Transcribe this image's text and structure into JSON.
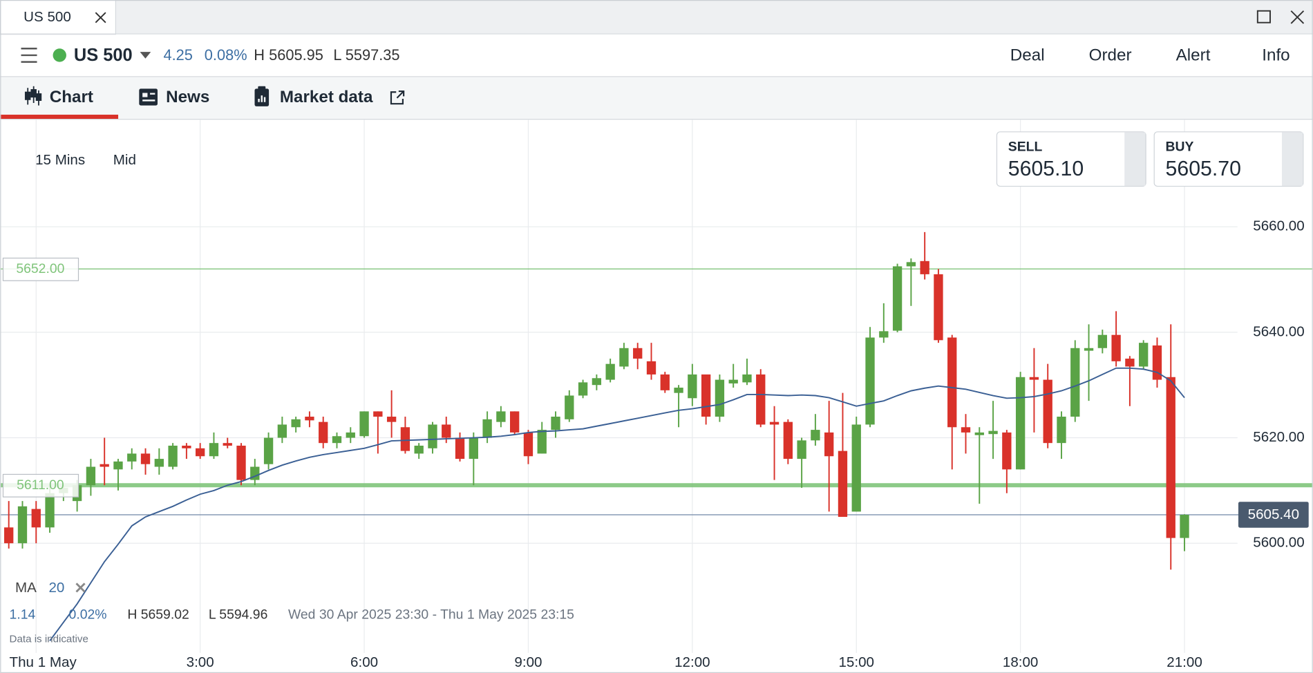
{
  "tab": {
    "title": "US 500"
  },
  "header": {
    "instrument": "US 500",
    "change": "4.25",
    "change_pct": "0.08%",
    "high": "H 5605.95",
    "low": "L 5597.35",
    "actions": [
      "Deal",
      "Order",
      "Alert",
      "Info"
    ]
  },
  "tabs": [
    "Chart",
    "News",
    "Market data"
  ],
  "chart_controls": {
    "interval": "15 Mins",
    "price_type": "Mid"
  },
  "quotes": [
    {
      "label": "SELL",
      "price": "5605.10"
    },
    {
      "label": "BUY",
      "price": "5605.70"
    }
  ],
  "footer": {
    "change": "1.14",
    "change_pct": "0.02%",
    "high": "H 5659.02",
    "low": "L 5594.96",
    "range": "Wed 30 Apr 2025 23:30 - Thu 1 May 2025 23:15",
    "note": "Data is indicative"
  },
  "chart_data": {
    "type": "candlestick",
    "categories": [
      null,
      null,
      "Thu 1 May",
      null,
      null,
      null,
      null,
      null,
      null,
      null,
      null,
      null,
      null,
      null,
      "3:00",
      null,
      null,
      null,
      null,
      null,
      null,
      null,
      null,
      null,
      null,
      null,
      "6:00",
      null,
      null,
      null,
      null,
      null,
      null,
      null,
      null,
      null,
      null,
      null,
      "9:00",
      null,
      null,
      null,
      null,
      null,
      null,
      null,
      null,
      null,
      null,
      null,
      "12:00",
      null,
      null,
      null,
      null,
      null,
      null,
      null,
      null,
      null,
      null,
      null,
      "15:00",
      null,
      null,
      null,
      null,
      null,
      null,
      null,
      null,
      null,
      null,
      null,
      "18:00",
      null,
      null,
      null,
      null,
      null,
      null,
      null,
      null,
      null,
      null,
      null,
      "21:00"
    ],
    "open": [
      5603,
      5600,
      5606.5,
      5603,
      5609.5,
      5608,
      5611,
      5615,
      5614,
      5615.5,
      5617,
      5614.5,
      5614.5,
      5618.5,
      5618,
      5616.5,
      5619,
      5618.5,
      5612,
      5615,
      5620,
      5622,
      5624,
      5623,
      5619,
      5620,
      5620.3,
      5625,
      5624,
      5622,
      5617,
      5618,
      5622.5,
      5620,
      5616,
      5620,
      5623,
      5625,
      5621,
      5617,
      5621.5,
      5623.5,
      5628,
      5630,
      5631,
      5633.5,
      5637,
      5634.5,
      5632,
      5628.5,
      5627.5,
      5632,
      5624,
      5630.3,
      5630.5,
      5632,
      5623,
      5623,
      5616,
      5619.5,
      5621,
      5617.5,
      5606,
      5622.5,
      5639,
      5640.3,
      5652.5,
      5653.5,
      5651,
      5639,
      5622,
      5620.5,
      5620.7,
      5621,
      5614,
      5631.5,
      5631,
      5619,
      5624,
      5636.5,
      5637,
      5639.5,
      5635,
      5633.5,
      5637.5,
      5631.5,
      5601
    ],
    "high": [
      5608,
      5608,
      5608,
      5611,
      5611,
      5612,
      5616,
      5620,
      5616,
      5618,
      5618,
      5618,
      5619,
      5619,
      5619,
      5621,
      5620,
      5619,
      5616,
      5621,
      5624,
      5624,
      5625,
      5624,
      5621,
      5622,
      5625,
      5625,
      5629,
      5624,
      5619,
      5623,
      5624,
      5621,
      5621,
      5625,
      5626,
      5625,
      5621.5,
      5623,
      5625,
      5629,
      5631,
      5632,
      5635,
      5638,
      5638,
      5638,
      5632.5,
      5630,
      5634,
      5632,
      5632,
      5634,
      5635,
      5633,
      5626,
      5623.5,
      5620,
      5624.5,
      5627,
      5628.5,
      5624,
      5641,
      5645.5,
      5653,
      5654,
      5659,
      5652,
      5639.5,
      5624.5,
      5622,
      5627,
      5621.5,
      5632.5,
      5637,
      5634,
      5625,
      5638.5,
      5641.5,
      5640.5,
      5644,
      5635.5,
      5638.5,
      5639,
      5641.5,
      5605.5
    ],
    "low": [
      5599,
      5599,
      5600,
      5602,
      5608,
      5606,
      5609,
      5611,
      5610,
      5614,
      5613,
      5613,
      5614,
      5616,
      5616,
      5616,
      5618,
      5611,
      5611,
      5614,
      5619,
      5621,
      5622,
      5618,
      5618,
      5619,
      5620,
      5617,
      5620,
      5617,
      5616,
      5617,
      5619,
      5615.5,
      5611,
      5619,
      5622,
      5620.5,
      5615,
      5617,
      5620,
      5623,
      5627.5,
      5629,
      5630.5,
      5633,
      5633,
      5631,
      5628.5,
      5622,
      5626,
      5622.5,
      5623,
      5629.5,
      5630,
      5622,
      5612,
      5615,
      5610.5,
      5618.5,
      5606,
      5605,
      5606,
      5622,
      5638,
      5640,
      5645,
      5650,
      5638,
      5614,
      5617,
      5607.5,
      5616,
      5609.5,
      5614,
      5621,
      5618,
      5616,
      5623,
      5627,
      5636,
      5633.5,
      5626,
      5633,
      5629.5,
      5595,
      5598.5
    ],
    "close": [
      5600,
      5607,
      5603,
      5609.5,
      5610.5,
      5611,
      5614.5,
      5614.5,
      5615.5,
      5617,
      5615,
      5616,
      5618.5,
      5618,
      5616.5,
      5619,
      5618.5,
      5612,
      5614.5,
      5620,
      5622.5,
      5623.5,
      5623.3,
      5619,
      5620.3,
      5621,
      5625,
      5624,
      5623,
      5617.5,
      5618.5,
      5622.5,
      5620,
      5616,
      5620,
      5623.5,
      5625,
      5621,
      5616.5,
      5621.5,
      5624,
      5628,
      5630.5,
      5631.3,
      5634,
      5637,
      5635,
      5632,
      5629,
      5629.5,
      5632,
      5624,
      5631,
      5631,
      5632,
      5622.5,
      5622.5,
      5616,
      5619.5,
      5621.5,
      5616.5,
      5605,
      5622.5,
      5639,
      5640.2,
      5652.5,
      5653.3,
      5651,
      5638.5,
      5622,
      5621,
      5621,
      5621.3,
      5614,
      5631.5,
      5631,
      5619,
      5624,
      5637,
      5637,
      5639.5,
      5634.5,
      5633.5,
      5638,
      5631,
      5601,
      5605.4
    ],
    "up_color": "#5aa346",
    "down_color": "#d9322a",
    "ma": {
      "name": "MA",
      "period": 20,
      "color": "#3a5f94",
      "values": [
        null,
        null,
        null,
        5581.5,
        5585,
        5588.5,
        5592.5,
        5596.5,
        5599.8,
        5603.3,
        5605,
        5606,
        5607,
        5608.2,
        5609.3,
        5610,
        5611,
        5611.7,
        5612.7,
        5613.8,
        5614.8,
        5615.6,
        5616.3,
        5616.8,
        5617.2,
        5617.6,
        5618,
        5618.7,
        5619.4,
        5619.5,
        5619.6,
        5619.7,
        5619.8,
        5619.9,
        5620,
        5620.1,
        5620.3,
        5620.6,
        5621,
        5621.2,
        5621.3,
        5621.5,
        5621.7,
        5622.2,
        5622.7,
        5623.2,
        5623.7,
        5624.2,
        5624.7,
        5625.2,
        5625.5,
        5625.9,
        5626.3,
        5627.2,
        5628.2,
        5628.2,
        5628.1,
        5628,
        5628.1,
        5628,
        5627.6,
        5626.8,
        5626,
        5626.5,
        5627,
        5628,
        5628.9,
        5629.4,
        5629.8,
        5629.5,
        5629.2,
        5628.6,
        5628,
        5627.5,
        5627.6,
        5627.8,
        5628.3,
        5628.9,
        5629.8,
        5630.8,
        5632,
        5633.2,
        5633.2,
        5633,
        5632.4,
        5630.8,
        5627.6
      ]
    },
    "levels": [
      {
        "value": 5652,
        "label": "5652.00",
        "color": "#7fc47a"
      },
      {
        "value": 5611,
        "label": "5611.00",
        "color": "#7fc47a"
      }
    ],
    "current_price": {
      "value": 5605.4,
      "label": "5605.40",
      "color": "#4a5a6e"
    },
    "ylim": [
      5575.4,
      5680.3
    ],
    "yticks": [
      {
        "value": 5600,
        "label": "5600.00"
      },
      {
        "value": 5620,
        "label": "5620.00"
      },
      {
        "value": 5640,
        "label": "5640.00"
      },
      {
        "value": 5660,
        "label": "5660.00"
      }
    ],
    "grid": true
  }
}
